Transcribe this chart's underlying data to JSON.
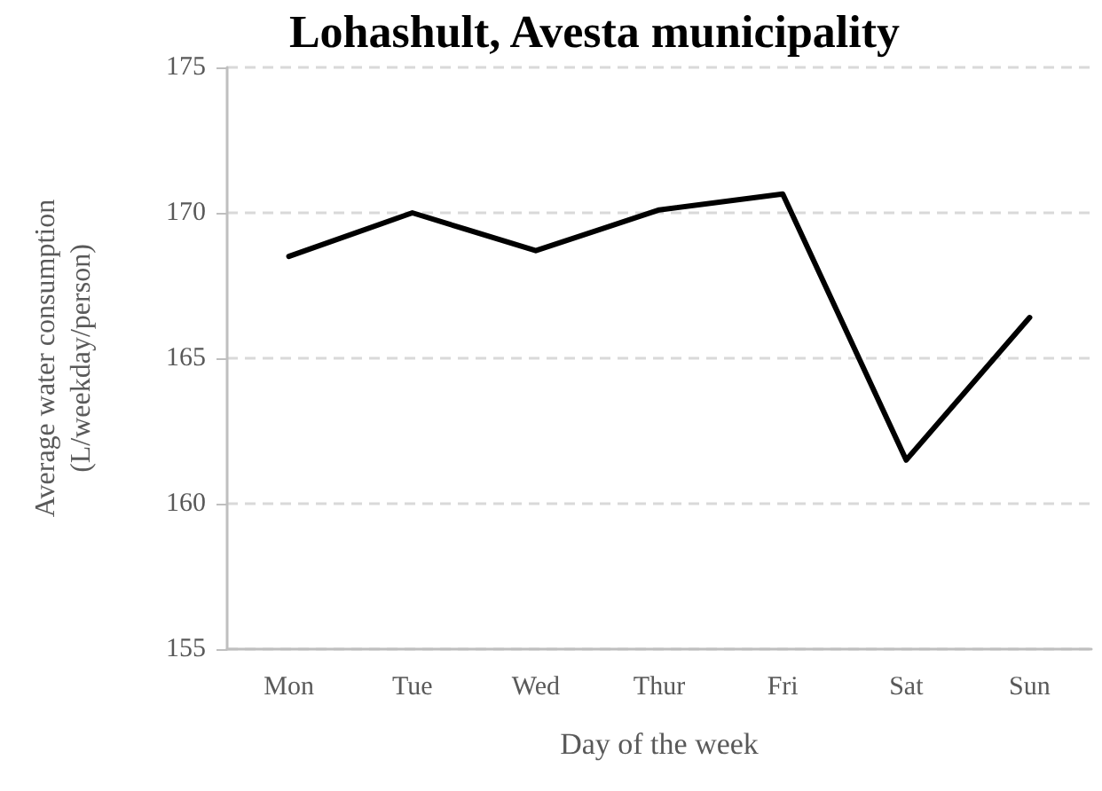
{
  "chart_data": {
    "type": "line",
    "title": "Lohashult, Avesta municipality",
    "xlabel": "Day of the week",
    "ylabel": "Average water consumption\n(L/weekday/person)",
    "categories": [
      "Mon",
      "Tue",
      "Wed",
      "Thur",
      "Fri",
      "Sat",
      "Sun"
    ],
    "series": [
      {
        "color": "#000000",
        "values": [
          168.5,
          170.0,
          168.7,
          170.1,
          170.65,
          161.5,
          166.4
        ]
      }
    ],
    "ylim": [
      155,
      175
    ],
    "yticks": [
      155,
      160,
      165,
      170,
      175
    ],
    "grid": "y",
    "line_style": "solid",
    "marker": "none"
  }
}
